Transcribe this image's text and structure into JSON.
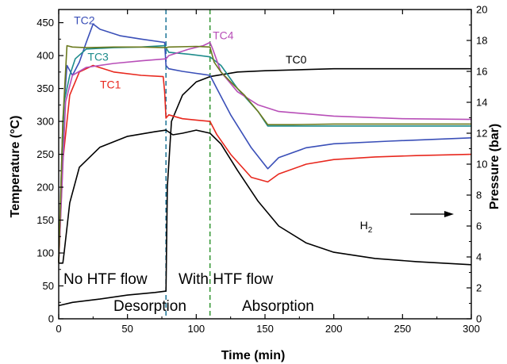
{
  "chart_data": {
    "type": "line",
    "xlabel": "Time (min)",
    "ylabel": "Temperature (°C)",
    "y2label": "Pressure (bar)",
    "xlim": [
      0,
      300
    ],
    "ylim": [
      0,
      470
    ],
    "y2lim": [
      0,
      20
    ],
    "x_ticks": [
      0,
      50,
      100,
      150,
      200,
      250,
      300
    ],
    "y_ticks": [
      0,
      50,
      100,
      150,
      200,
      250,
      300,
      350,
      400,
      450
    ],
    "y2_ticks": [
      0,
      2,
      4,
      6,
      8,
      10,
      12,
      14,
      16,
      18,
      20
    ],
    "vlines": [
      {
        "x": 78,
        "color": "#2a7d9e"
      },
      {
        "x": 110,
        "color": "#3a9a3a"
      }
    ],
    "annotations": {
      "no_flow": "No HTF flow",
      "with_flow": "With HTF flow",
      "desorption": "Desorption",
      "absorption": "Absorption"
    },
    "series": [
      {
        "name": "TC0",
        "color": "#000000",
        "axis": "left",
        "points": [
          [
            0,
            20
          ],
          [
            10,
            25
          ],
          [
            30,
            30
          ],
          [
            50,
            36
          ],
          [
            70,
            40
          ],
          [
            78,
            42
          ],
          [
            79,
            200
          ],
          [
            82,
            300
          ],
          [
            90,
            340
          ],
          [
            100,
            360
          ],
          [
            110,
            368
          ],
          [
            130,
            375
          ],
          [
            150,
            377
          ],
          [
            200,
            380
          ],
          [
            250,
            380
          ],
          [
            300,
            380
          ]
        ]
      },
      {
        "name": "TC1",
        "color": "#e8281e",
        "axis": "left",
        "points": [
          [
            0,
            85
          ],
          [
            3,
            240
          ],
          [
            8,
            340
          ],
          [
            15,
            375
          ],
          [
            25,
            385
          ],
          [
            40,
            375
          ],
          [
            60,
            370
          ],
          [
            76,
            368
          ],
          [
            77,
            345
          ],
          [
            78,
            305
          ],
          [
            80,
            310
          ],
          [
            90,
            304
          ],
          [
            100,
            302
          ],
          [
            110,
            300
          ],
          [
            115,
            280
          ],
          [
            125,
            250
          ],
          [
            140,
            215
          ],
          [
            152,
            208
          ],
          [
            160,
            220
          ],
          [
            180,
            235
          ],
          [
            200,
            242
          ],
          [
            230,
            246
          ],
          [
            260,
            248
          ],
          [
            300,
            250
          ]
        ]
      },
      {
        "name": "TC2",
        "color": "#3a4fb8",
        "axis": "left",
        "points": [
          [
            0,
            85
          ],
          [
            3,
            300
          ],
          [
            6,
            385
          ],
          [
            10,
            370
          ],
          [
            15,
            390
          ],
          [
            20,
            420
          ],
          [
            25,
            448
          ],
          [
            30,
            440
          ],
          [
            45,
            430
          ],
          [
            60,
            425
          ],
          [
            77,
            420
          ],
          [
            78,
            385
          ],
          [
            80,
            380
          ],
          [
            90,
            376
          ],
          [
            100,
            373
          ],
          [
            110,
            370
          ],
          [
            115,
            350
          ],
          [
            125,
            310
          ],
          [
            140,
            260
          ],
          [
            152,
            228
          ],
          [
            160,
            245
          ],
          [
            180,
            260
          ],
          [
            200,
            266
          ],
          [
            240,
            270
          ],
          [
            300,
            275
          ]
        ]
      },
      {
        "name": "TC3",
        "color": "#1e8c8c",
        "axis": "left",
        "points": [
          [
            0,
            85
          ],
          [
            4,
            330
          ],
          [
            8,
            370
          ],
          [
            12,
            395
          ],
          [
            20,
            410
          ],
          [
            40,
            412
          ],
          [
            60,
            413
          ],
          [
            77,
            415
          ],
          [
            80,
            405
          ],
          [
            95,
            402
          ],
          [
            110,
            398
          ],
          [
            118,
            385
          ],
          [
            130,
            350
          ],
          [
            145,
            315
          ],
          [
            152,
            293
          ],
          [
            170,
            293
          ],
          [
            200,
            293
          ],
          [
            250,
            293
          ],
          [
            300,
            293
          ]
        ]
      },
      {
        "name": "TC4",
        "color": "#b84fb8",
        "axis": "left",
        "points": [
          [
            0,
            85
          ],
          [
            5,
            330
          ],
          [
            10,
            370
          ],
          [
            20,
            382
          ],
          [
            40,
            388
          ],
          [
            60,
            392
          ],
          [
            78,
            395
          ],
          [
            80,
            400
          ],
          [
            95,
            410
          ],
          [
            105,
            415
          ],
          [
            110,
            420
          ],
          [
            112,
            410
          ],
          [
            118,
            375
          ],
          [
            130,
            345
          ],
          [
            145,
            325
          ],
          [
            160,
            315
          ],
          [
            200,
            308
          ],
          [
            250,
            304
          ],
          [
            300,
            303
          ]
        ]
      },
      {
        "name": "",
        "color": "#6b7a1e",
        "axis": "left",
        "points": [
          [
            0,
            85
          ],
          [
            3,
            300
          ],
          [
            6,
            415
          ],
          [
            10,
            413
          ],
          [
            20,
            412
          ],
          [
            40,
            413
          ],
          [
            60,
            413
          ],
          [
            78,
            412
          ],
          [
            80,
            413
          ],
          [
            100,
            414
          ],
          [
            110,
            413
          ],
          [
            113,
            390
          ],
          [
            118,
            375
          ],
          [
            125,
            360
          ],
          [
            135,
            340
          ],
          [
            145,
            315
          ],
          [
            152,
            295
          ],
          [
            170,
            295
          ],
          [
            200,
            296
          ],
          [
            250,
            296
          ],
          [
            300,
            296
          ]
        ]
      },
      {
        "name": "H₂",
        "label": "H",
        "label_sub": "2",
        "color": "#000000",
        "axis": "right",
        "points": [
          [
            0,
            3.6
          ],
          [
            3,
            3.6
          ],
          [
            4,
            4.3
          ],
          [
            8,
            7.5
          ],
          [
            15,
            9.8
          ],
          [
            30,
            11.1
          ],
          [
            50,
            11.8
          ],
          [
            70,
            12.1
          ],
          [
            78,
            12.2
          ],
          [
            83,
            11.9
          ],
          [
            90,
            12.0
          ],
          [
            100,
            12.2
          ],
          [
            110,
            12.0
          ],
          [
            118,
            11.3
          ],
          [
            130,
            9.6
          ],
          [
            145,
            7.6
          ],
          [
            160,
            6.0
          ],
          [
            180,
            4.9
          ],
          [
            200,
            4.3
          ],
          [
            230,
            3.9
          ],
          [
            260,
            3.7
          ],
          [
            300,
            3.5
          ]
        ]
      }
    ]
  }
}
